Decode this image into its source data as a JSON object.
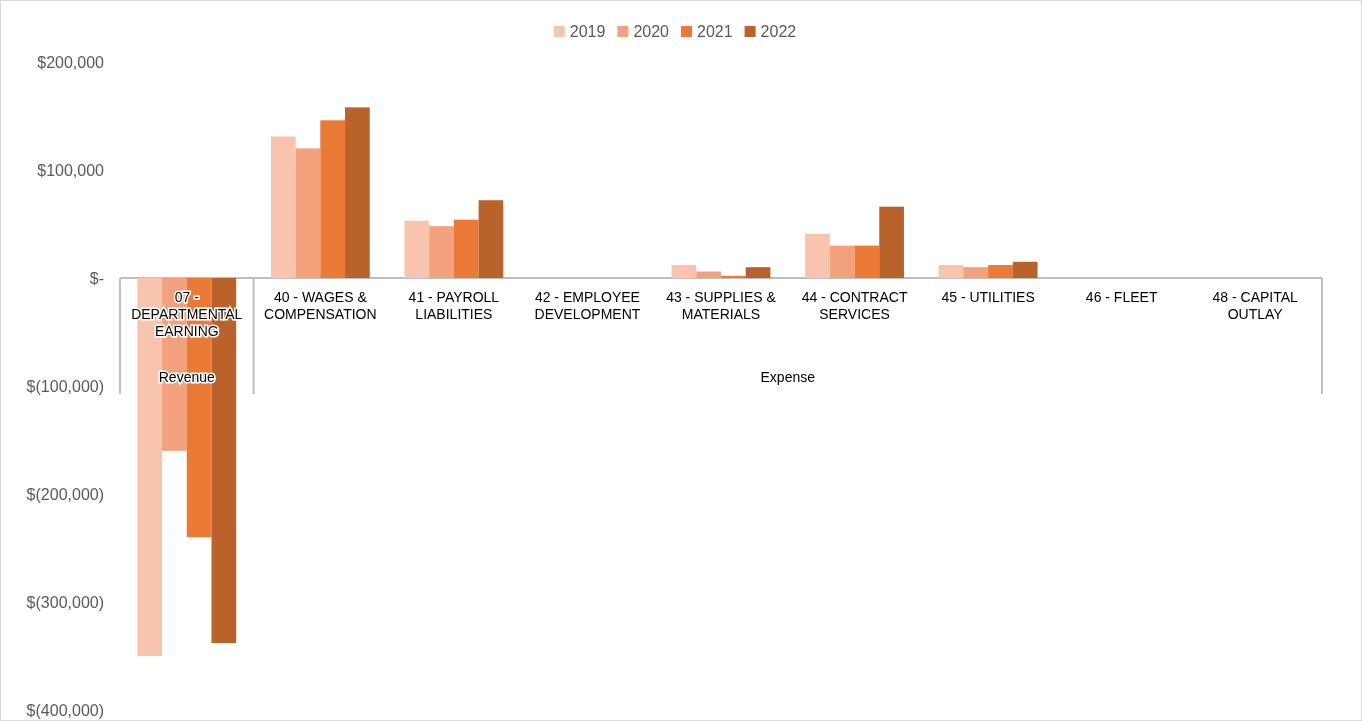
{
  "chart_data": {
    "type": "bar",
    "categories": [
      "07 - DEPARTMENTAL EARNING",
      "40 - WAGES & COMPENSATION",
      "41 - PAYROLL LIABILITIES",
      "42 - EMPLOYEE DEVELOPMENT",
      "43 - SUPPLIES & MATERIALS",
      "44 - CONTRACT SERVICES",
      "45 - UTILITIES",
      "46 - FLEET",
      "48 - CAPITAL OUTLAY"
    ],
    "series": [
      {
        "name": "2019",
        "color": "#f9c4ad",
        "values": [
          -350000,
          131000,
          53000,
          0,
          12000,
          41000,
          12000,
          0,
          0
        ]
      },
      {
        "name": "2020",
        "color": "#f3a07c",
        "values": [
          -160000,
          120000,
          48000,
          0,
          6000,
          30000,
          10000,
          0,
          0
        ]
      },
      {
        "name": "2021",
        "color": "#ea7a35",
        "values": [
          -240000,
          146000,
          54000,
          0,
          2000,
          30000,
          12000,
          0,
          0
        ]
      },
      {
        "name": "2022",
        "color": "#b9622c",
        "values": [
          -338000,
          158000,
          72000,
          0,
          10000,
          66000,
          15000,
          0,
          0
        ]
      }
    ],
    "ylim": [
      -400000,
      200000
    ],
    "yticks": [
      {
        "value": -400000,
        "label": "$(400,000)"
      },
      {
        "value": -300000,
        "label": "$(300,000)"
      },
      {
        "value": -200000,
        "label": "$(200,000)"
      },
      {
        "value": -100000,
        "label": "$(100,000)"
      },
      {
        "value": 0,
        "label": "$-"
      },
      {
        "value": 100000,
        "label": "$100,000"
      },
      {
        "value": 200000,
        "label": "$200,000"
      }
    ],
    "annotations": [
      "Revenue",
      "Expense"
    ],
    "grid": false,
    "legend": "top"
  }
}
